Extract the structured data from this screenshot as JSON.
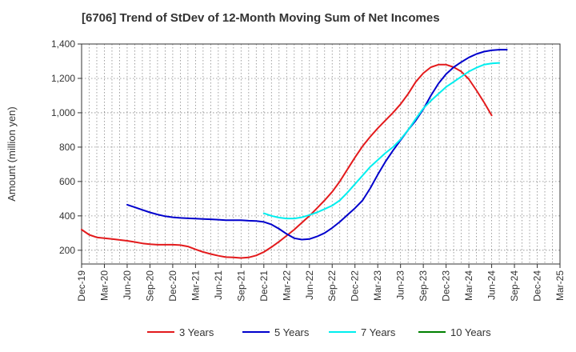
{
  "chart_data": {
    "type": "line",
    "title": "[6706]  Trend of StDev of 12-Month Moving Sum of Net Incomes",
    "ylabel": "Amount (million yen)",
    "xlabel": "",
    "ylim": [
      120,
      1400
    ],
    "yticks": [
      200,
      400,
      600,
      800,
      1000,
      1200,
      1400
    ],
    "ytick_labels": [
      "200",
      "400",
      "600",
      "800",
      "1,000",
      "1,200",
      "1,400"
    ],
    "x_categories": [
      "Dec-19",
      "Mar-20",
      "Jun-20",
      "Sep-20",
      "Dec-20",
      "Mar-21",
      "Jun-21",
      "Sep-21",
      "Dec-21",
      "Mar-22",
      "Jun-22",
      "Sep-22",
      "Dec-22",
      "Mar-23",
      "Jun-23",
      "Sep-23",
      "Dec-23",
      "Mar-24",
      "Jun-24",
      "Sep-24",
      "Dec-24",
      "Mar-25"
    ],
    "grid": true,
    "legend_position": "bottom",
    "series": [
      {
        "name": "3 Years",
        "color": "#e31a1c",
        "start_index": 0,
        "values": [
          320,
          290,
          275,
          270,
          265,
          260,
          255,
          248,
          240,
          235,
          232,
          232,
          232,
          230,
          222,
          205,
          190,
          178,
          168,
          160,
          158,
          155,
          158,
          170,
          190,
          218,
          250,
          285,
          320,
          360,
          400,
          445,
          490,
          540,
          600,
          670,
          740,
          805,
          860,
          910,
          955,
          1000,
          1050,
          1110,
          1180,
          1230,
          1265,
          1280,
          1280,
          1265,
          1240,
          1195,
          1130,
          1060,
          985
        ]
      },
      {
        "name": "5 Years",
        "color": "#0000cc",
        "start_index": 6,
        "values": [
          465,
          450,
          435,
          420,
          408,
          398,
          392,
          388,
          386,
          384,
          382,
          380,
          378,
          375,
          375,
          375,
          372,
          370,
          365,
          350,
          325,
          295,
          270,
          262,
          265,
          280,
          300,
          330,
          365,
          405,
          445,
          490,
          560,
          640,
          715,
          780,
          840,
          900,
          955,
          1020,
          1100,
          1170,
          1225,
          1265,
          1295,
          1322,
          1342,
          1356,
          1363,
          1367,
          1367
        ]
      },
      {
        "name": "7 Years",
        "color": "#00eeee",
        "start_index": 24,
        "values": [
          415,
          400,
          390,
          385,
          385,
          392,
          405,
          420,
          440,
          460,
          490,
          535,
          585,
          635,
          685,
          725,
          765,
          800,
          845,
          900,
          965,
          1025,
          1070,
          1110,
          1150,
          1180,
          1210,
          1240,
          1262,
          1280,
          1287,
          1290
        ]
      },
      {
        "name": "10 Years",
        "color": "#008000",
        "start_index": 0,
        "values": []
      }
    ]
  }
}
